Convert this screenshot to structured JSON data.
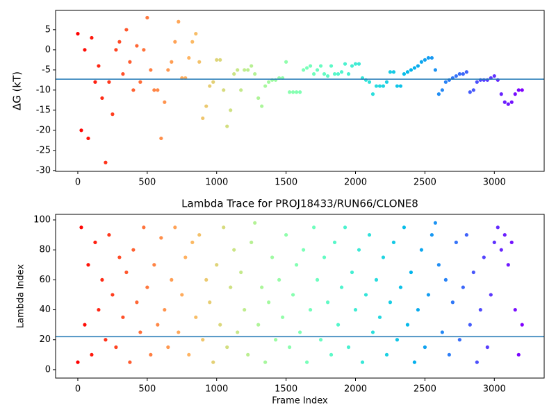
{
  "chart_data": [
    {
      "type": "scatter",
      "y_label": "ΔG (kT)",
      "colormap": "rainbow_r",
      "hline": -7.3,
      "hline_color": "#1f77b4",
      "xlim": [
        -160,
        3359
      ],
      "ylim": [
        -30.2,
        9.8
      ],
      "xticks": [
        0,
        500,
        1000,
        1500,
        2000,
        2500,
        3000
      ],
      "yticks": [
        -30,
        -25,
        -20,
        -15,
        -10,
        -5,
        0,
        5
      ],
      "x": [
        0,
        25,
        50,
        75,
        100,
        125,
        150,
        175,
        200,
        225,
        250,
        275,
        300,
        325,
        350,
        375,
        400,
        425,
        450,
        475,
        500,
        525,
        550,
        575,
        600,
        625,
        650,
        675,
        700,
        725,
        750,
        775,
        800,
        825,
        850,
        875,
        900,
        925,
        950,
        975,
        1000,
        1025,
        1050,
        1075,
        1100,
        1125,
        1150,
        1175,
        1200,
        1225,
        1250,
        1275,
        1300,
        1325,
        1350,
        1375,
        1400,
        1425,
        1450,
        1475,
        1500,
        1525,
        1550,
        1575,
        1600,
        1625,
        1650,
        1675,
        1700,
        1725,
        1750,
        1775,
        1800,
        1825,
        1850,
        1875,
        1900,
        1925,
        1950,
        1975,
        2000,
        2025,
        2050,
        2075,
        2100,
        2125,
        2150,
        2175,
        2200,
        2225,
        2250,
        2275,
        2300,
        2325,
        2350,
        2375,
        2400,
        2425,
        2450,
        2475,
        2500,
        2525,
        2550,
        2575,
        2600,
        2625,
        2650,
        2675,
        2700,
        2725,
        2750,
        2775,
        2800,
        2825,
        2850,
        2875,
        2900,
        2925,
        2950,
        2975,
        3000,
        3025,
        3050,
        3075,
        3100,
        3125,
        3150,
        3175,
        3200
      ],
      "values": [
        4,
        -20,
        0,
        -22,
        3,
        -8,
        -4,
        -12,
        -28,
        -8,
        -16,
        0,
        2,
        -6,
        5,
        -3,
        -10,
        1,
        -8,
        0,
        8,
        -5,
        -10,
        -10,
        -22,
        -13,
        -5,
        -3,
        2,
        7,
        -7,
        -7,
        -2,
        2,
        4,
        -3,
        -17,
        -14,
        -9,
        -8,
        -2.5,
        -2.5,
        -10,
        -19,
        -15,
        -6,
        -5,
        -10,
        -5,
        -5,
        -4,
        -6,
        -12,
        -14,
        -9,
        -8,
        -7.5,
        -7.5,
        -7,
        -7,
        -3,
        -10.5,
        -10.5,
        -10.5,
        -10.5,
        -5,
        -4.5,
        -4,
        -6,
        -5,
        -4,
        -6,
        -6.5,
        -4,
        -6,
        -6,
        -5.5,
        -3.5,
        -6,
        -4,
        -3.5,
        -3.5,
        -7,
        -7.5,
        -8,
        -11,
        -9,
        -9,
        -9,
        -8,
        -5.5,
        -5.5,
        -9,
        -9,
        -6,
        -5.5,
        -5,
        -4.5,
        -4,
        -3,
        -2.5,
        -2,
        -2,
        -5,
        -11,
        -10,
        -8,
        -7.5,
        -7,
        -6.5,
        -6,
        -6,
        -5.5,
        -10.5,
        -10,
        -8,
        -7.5,
        -7.5,
        -7.5,
        -7,
        -6.5,
        -7.5,
        -11,
        -13,
        -13.5,
        -13,
        -11,
        -10,
        -10
      ]
    },
    {
      "type": "scatter",
      "title": "Lambda Trace for PROJ18433/RUN66/CLONE8",
      "x_label": "Frame Index",
      "y_label": "Lambda Index",
      "colormap": "rainbow_r",
      "hline": 22,
      "hline_color": "#1f77b4",
      "xlim": [
        -160,
        3359
      ],
      "ylim": [
        -5.6,
        103.7
      ],
      "xticks": [
        0,
        500,
        1000,
        1500,
        2000,
        2500,
        3000
      ],
      "yticks": [
        0,
        20,
        40,
        60,
        80,
        100
      ],
      "x": [
        0,
        25,
        50,
        75,
        100,
        125,
        150,
        175,
        200,
        225,
        250,
        275,
        300,
        325,
        350,
        375,
        400,
        425,
        450,
        475,
        500,
        525,
        550,
        575,
        600,
        625,
        650,
        675,
        700,
        725,
        750,
        775,
        800,
        825,
        850,
        875,
        900,
        925,
        950,
        975,
        1000,
        1025,
        1050,
        1075,
        1100,
        1125,
        1150,
        1175,
        1200,
        1225,
        1250,
        1275,
        1300,
        1325,
        1350,
        1375,
        1400,
        1425,
        1450,
        1475,
        1500,
        1525,
        1550,
        1575,
        1600,
        1625,
        1650,
        1675,
        1700,
        1725,
        1750,
        1775,
        1800,
        1825,
        1850,
        1875,
        1900,
        1925,
        1950,
        1975,
        2000,
        2025,
        2050,
        2075,
        2100,
        2125,
        2150,
        2175,
        2200,
        2225,
        2250,
        2275,
        2300,
        2325,
        2350,
        2375,
        2400,
        2425,
        2450,
        2475,
        2500,
        2525,
        2550,
        2575,
        2600,
        2625,
        2650,
        2675,
        2700,
        2725,
        2750,
        2775,
        2800,
        2825,
        2850,
        2875,
        2900,
        2925,
        2950,
        2975,
        3000,
        3025,
        3050,
        3075,
        3100,
        3125,
        3150,
        3175,
        3200
      ],
      "values": [
        5,
        95,
        30,
        70,
        10,
        85,
        40,
        60,
        20,
        90,
        50,
        15,
        75,
        35,
        65,
        5,
        80,
        45,
        25,
        95,
        55,
        10,
        70,
        30,
        88,
        40,
        15,
        60,
        95,
        25,
        50,
        75,
        10,
        85,
        35,
        90,
        20,
        60,
        45,
        5,
        70,
        30,
        95,
        15,
        55,
        80,
        25,
        65,
        40,
        10,
        85,
        98,
        30,
        55,
        5,
        45,
        75,
        20,
        60,
        35,
        90,
        15,
        50,
        70,
        25,
        80,
        5,
        40,
        95,
        60,
        20,
        75,
        45,
        10,
        85,
        30,
        55,
        95,
        15,
        65,
        40,
        80,
        5,
        50,
        90,
        25,
        60,
        35,
        75,
        10,
        45,
        85,
        20,
        55,
        95,
        30,
        65,
        5,
        40,
        80,
        15,
        50,
        90,
        98,
        70,
        25,
        60,
        10,
        45,
        85,
        20,
        55,
        90,
        30,
        65,
        5,
        40,
        75,
        15,
        50,
        85,
        95,
        80,
        90,
        70,
        85,
        40,
        10,
        30
      ]
    }
  ]
}
